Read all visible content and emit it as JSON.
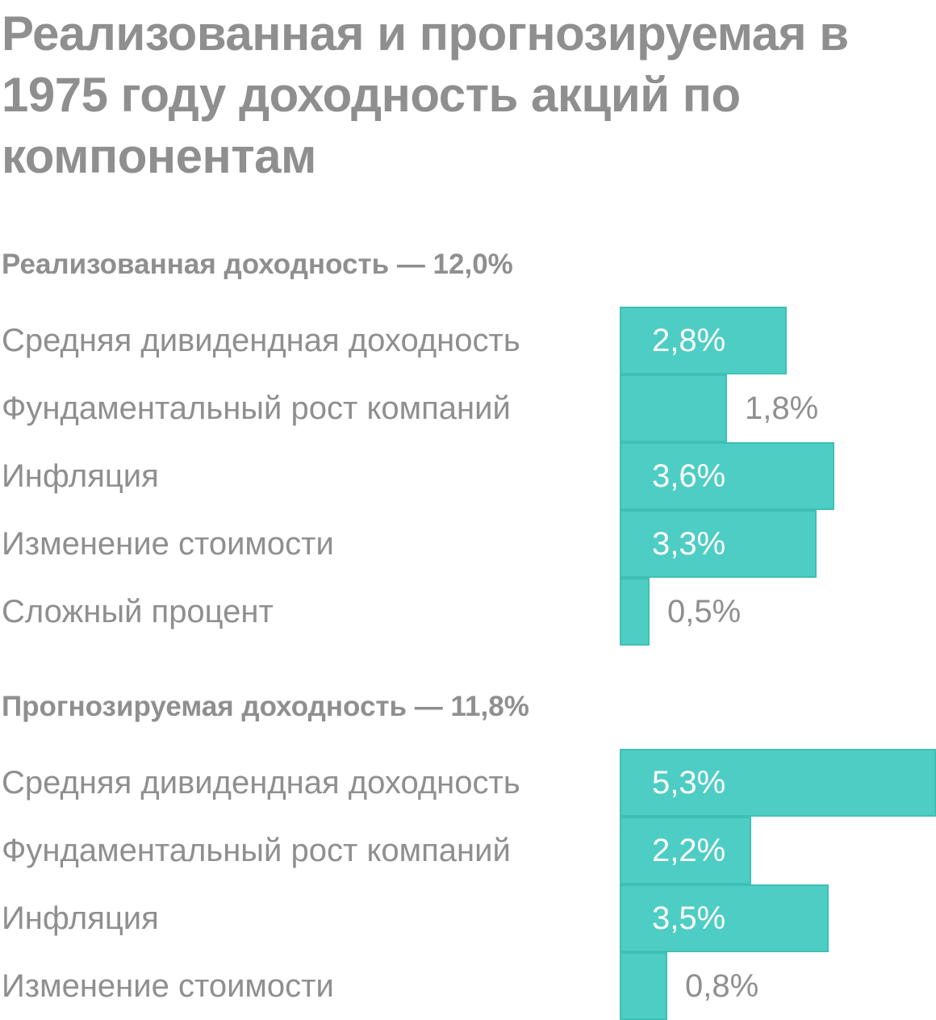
{
  "chart_data": {
    "type": "bar",
    "orientation": "horizontal",
    "title": "Реализованная и прогнозируемая в 1975 году доходность акций по компонентам",
    "unit": "%",
    "groups": [
      {
        "name": "Реализованная доходность — 12,0%",
        "categories": [
          "Средняя дивидендная доходность",
          "Фундаментальный рост компаний",
          "Инфляция",
          "Изменение стоимости",
          "Сложный процент"
        ],
        "values": [
          2.8,
          1.8,
          3.6,
          3.3,
          0.5
        ],
        "labels": [
          "2,8%",
          "1,8%",
          "3,6%",
          "3,3%",
          "0,5%"
        ]
      },
      {
        "name": "Прогнозируемая доходность — 11,8%",
        "categories": [
          "Средняя дивидендная доходность",
          "Фундаментальный рост компаний",
          "Инфляция",
          "Изменение стоимости"
        ],
        "values": [
          5.3,
          2.2,
          3.5,
          0.8
        ],
        "labels": [
          "5,3%",
          "2,2%",
          "3,5%",
          "0,8%"
        ]
      }
    ],
    "colors": {
      "bar": "#4ecdc4",
      "bar_border": "#3fc0b6",
      "text": "#8f8f8f",
      "label_inside": "#ffffff"
    }
  }
}
